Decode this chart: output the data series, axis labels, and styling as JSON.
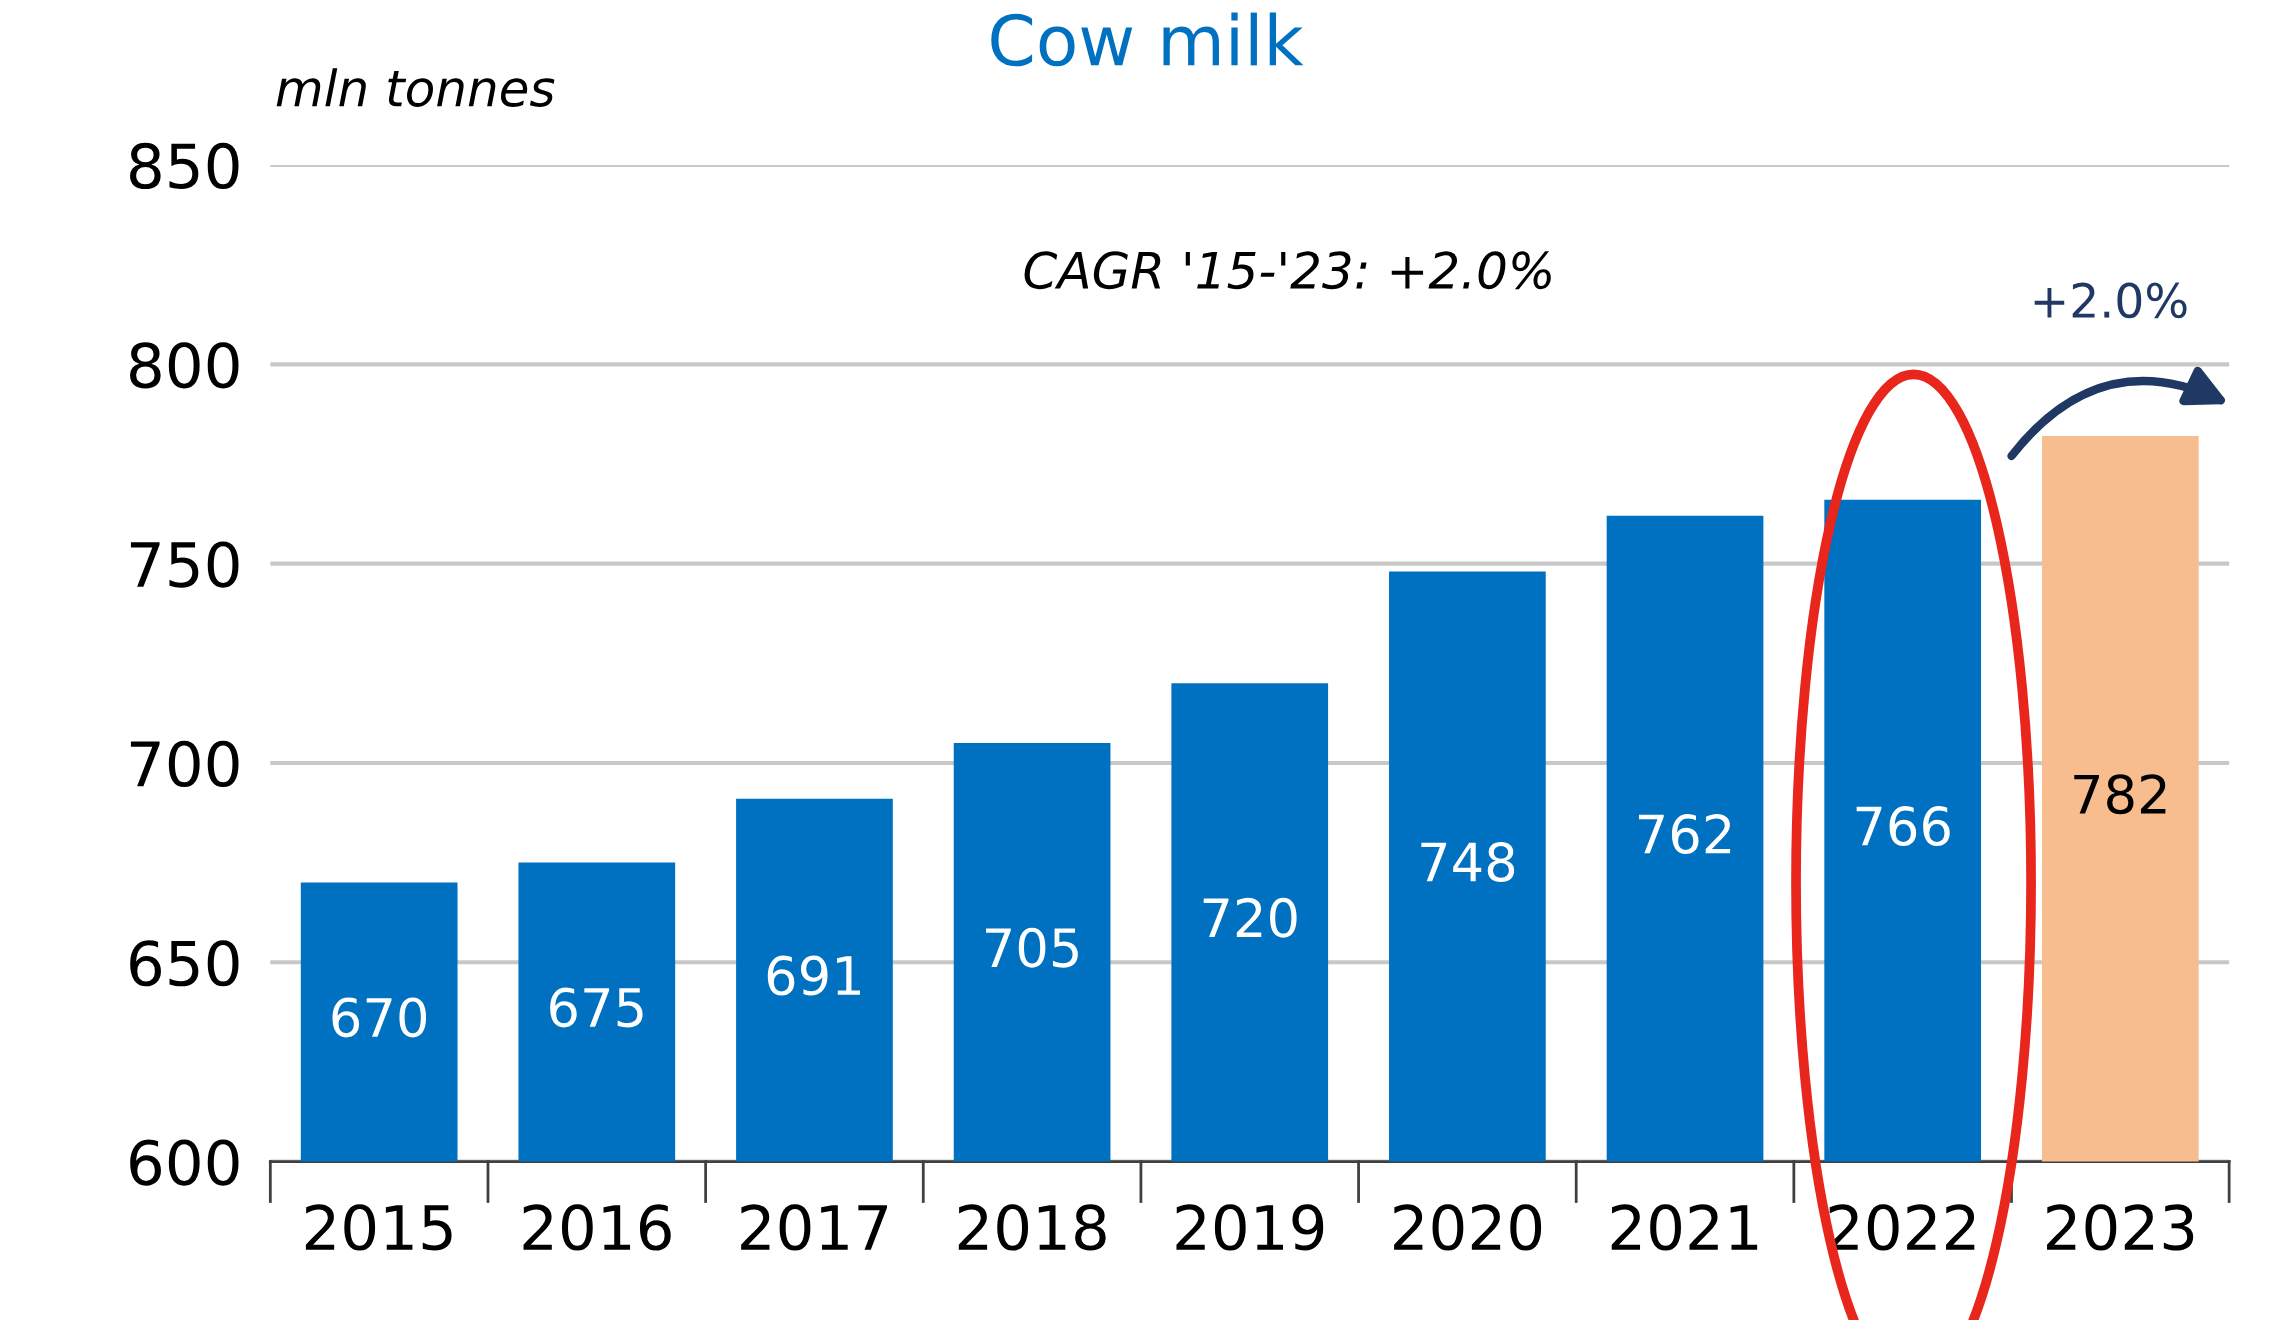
{
  "chart_data": {
    "type": "bar",
    "title": "Cow milk",
    "ylabel": "mln tonnes",
    "categories": [
      "2015",
      "2016",
      "2017",
      "2018",
      "2019",
      "2020",
      "2021",
      "2022",
      "2023"
    ],
    "values": [
      670,
      675,
      691,
      705,
      720,
      748,
      762,
      766,
      782
    ],
    "colors": [
      "#0070c0",
      "#0070c0",
      "#0070c0",
      "#0070c0",
      "#0070c0",
      "#0070c0",
      "#0070c0",
      "#0070c0",
      "#f8bd8e"
    ],
    "data_labels": true,
    "ylim": [
      600,
      850
    ],
    "yticks": [
      600,
      650,
      700,
      750,
      800,
      850
    ],
    "grid": "y",
    "annotations": [
      "CAGR '15-'23: +2.0%",
      {
        "text": "+2.0%",
        "x": "2023",
        "y": 782
      }
    ]
  }
}
